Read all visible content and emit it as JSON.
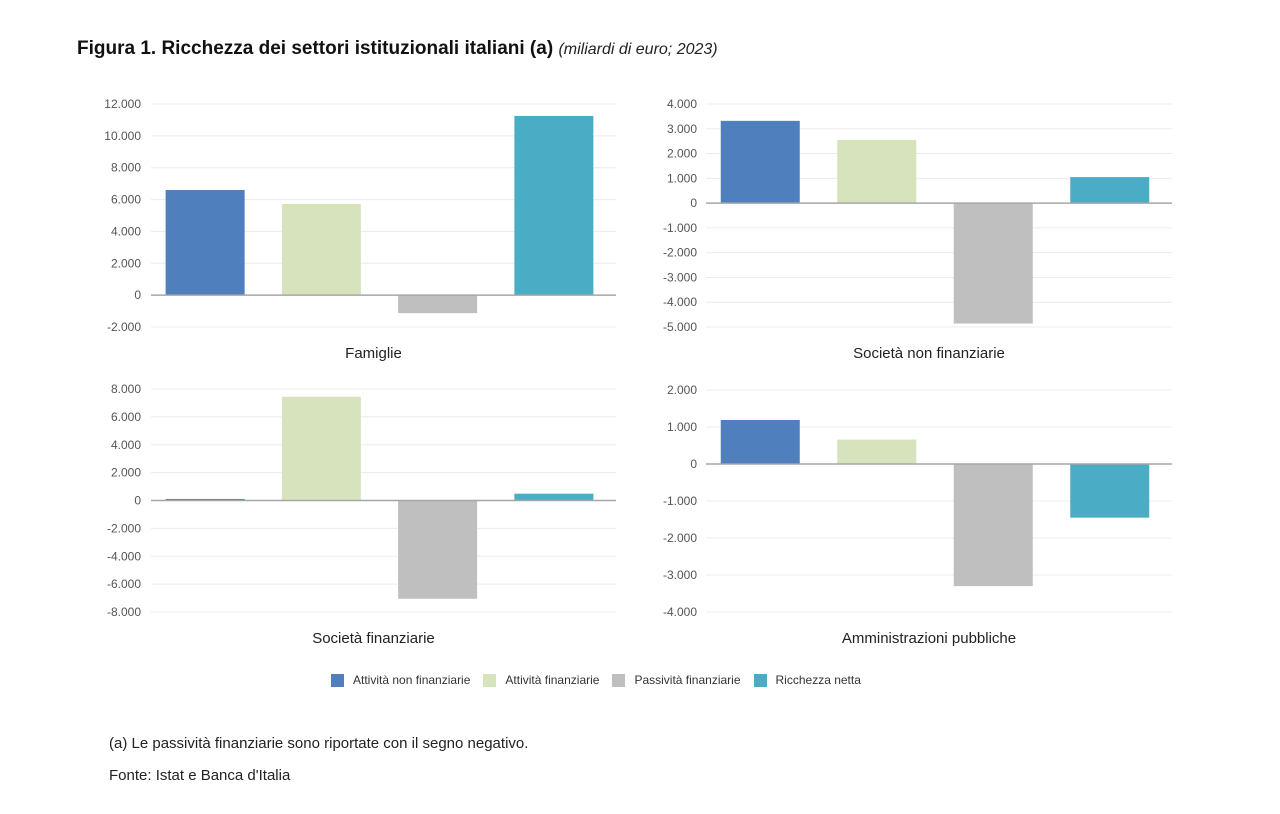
{
  "title": {
    "main": "Figura 1. Ricchezza dei settori istituzionali italiani (a)",
    "unit": "(miliardi di euro; 2023)"
  },
  "chart_data": [
    {
      "type": "bar",
      "title": "Famiglie",
      "categories": [
        "Attività non finanziarie",
        "Attività finanziarie",
        "Passività finanziarie",
        "Ricchezza netta"
      ],
      "values": [
        6600,
        5720,
        -1130,
        11250
      ],
      "ylim": [
        -2000,
        12000
      ],
      "yticks": [
        12000,
        10000,
        8000,
        6000,
        4000,
        2000,
        0,
        -2000
      ],
      "ytick_labels": [
        "12.000",
        "10.000",
        "8.000",
        "6.000",
        "4.000",
        "2.000",
        "0",
        "-2.000"
      ],
      "grid": true,
      "xlabel": "",
      "ylabel": ""
    },
    {
      "type": "bar",
      "title": "Società non finanziarie",
      "categories": [
        "Attività non finanziarie",
        "Attività finanziarie",
        "Passività finanziarie",
        "Ricchezza netta"
      ],
      "values": [
        3320,
        2550,
        -4860,
        1050
      ],
      "ylim": [
        -5000,
        4000
      ],
      "yticks": [
        4000,
        3000,
        2000,
        1000,
        0,
        -1000,
        -2000,
        -3000,
        -4000,
        -5000
      ],
      "ytick_labels": [
        "4.000",
        "3.000",
        "2.000",
        "1.000",
        "0",
        "-1.000",
        "-2.000",
        "-3.000",
        "-4.000",
        "-5.000"
      ],
      "grid": true,
      "xlabel": "",
      "ylabel": ""
    },
    {
      "type": "bar",
      "title": "Società finanziarie",
      "categories": [
        "Attività non finanziarie",
        "Attività finanziarie",
        "Passività finanziarie",
        "Ricchezza netta"
      ],
      "values": [
        110,
        7440,
        -7050,
        490
      ],
      "ylim": [
        -8000,
        8000
      ],
      "yticks": [
        8000,
        6000,
        4000,
        2000,
        0,
        -2000,
        -4000,
        -6000,
        -8000
      ],
      "ytick_labels": [
        "8.000",
        "6.000",
        "4.000",
        "2.000",
        "0",
        "-2.000",
        "-4.000",
        "-6.000",
        "-8.000"
      ],
      "grid": true,
      "xlabel": "",
      "ylabel": ""
    },
    {
      "type": "bar",
      "title": "Amministrazioni pubbliche",
      "categories": [
        "Attività non finanziarie",
        "Attività finanziarie",
        "Passività finanziarie",
        "Ricchezza netta"
      ],
      "values": [
        1190,
        660,
        -3300,
        -1450
      ],
      "ylim": [
        -4000,
        2000
      ],
      "yticks": [
        2000,
        1000,
        0,
        -1000,
        -2000,
        -3000,
        -4000
      ],
      "ytick_labels": [
        "2.000",
        "1.000",
        "0",
        "-1.000",
        "-2.000",
        "-3.000",
        "-4.000"
      ],
      "grid": true,
      "xlabel": "",
      "ylabel": ""
    }
  ],
  "legend": {
    "placement": "bottom-center",
    "items": [
      {
        "label": "Attività non finanziarie",
        "color": "#4f7fbc"
      },
      {
        "label": "Attività finanziarie",
        "color": "#d6e3bc"
      },
      {
        "label": "Passività finanziarie",
        "color": "#bfbfbf"
      },
      {
        "label": "Ricchezza netta",
        "color": "#4bacc6"
      }
    ]
  },
  "footnote": "(a) Le passività finanziarie sono riportate con il segno negativo.",
  "source": "Fonte: Istat e Banca d'Italia"
}
